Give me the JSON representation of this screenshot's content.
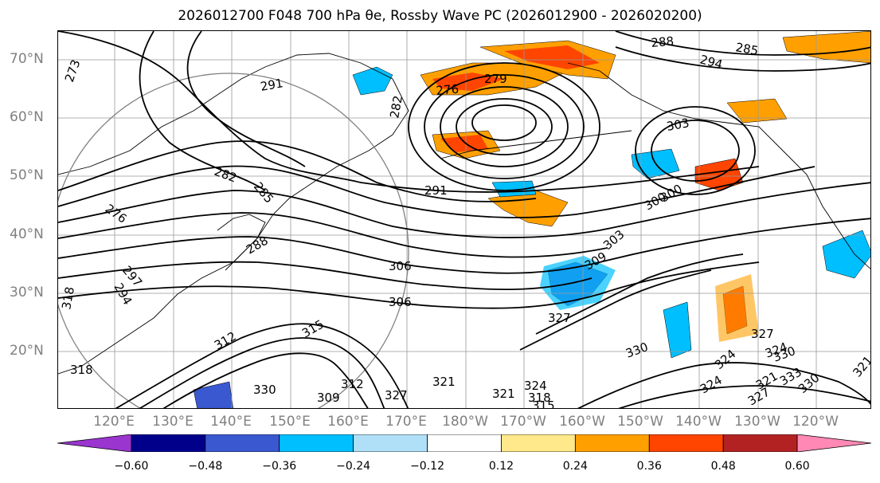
{
  "title": "2026012700 F048 700 hPa θe, Rossby Wave PC (2026012900 - 2026020200)",
  "lat_labels": [
    "70°N",
    "60°N",
    "50°N",
    "40°N",
    "30°N",
    "20°N"
  ],
  "lon_labels": [
    "120°E",
    "130°E",
    "140°E",
    "150°E",
    "160°E",
    "170°E",
    "180°W",
    "170°W",
    "160°W",
    "150°W",
    "140°W",
    "130°W",
    "120°W"
  ],
  "colorbar": {
    "colors": [
      "#9a35d0",
      "#00008b",
      "#3a59d0",
      "#00bfff",
      "#b0e0f8",
      "#ffffff",
      "#ffe98a",
      "#ffa000",
      "#ff4500",
      "#b22222",
      "#ff88b4"
    ],
    "ticks": [
      "−0.60",
      "−0.48",
      "−0.36",
      "−0.24",
      "−0.12",
      "0.12",
      "0.24",
      "0.36",
      "0.48",
      "0.60"
    ]
  },
  "contour_labels": [
    "273",
    "291",
    "288",
    "285",
    "294",
    "276",
    "279",
    "282",
    "303",
    "300",
    "282",
    "285",
    "276",
    "291",
    "300",
    "303",
    "306",
    "309",
    "306",
    "288",
    "297",
    "294",
    "318",
    "315",
    "312",
    "330",
    "327",
    "324",
    "321",
    "318",
    "315",
    "312",
    "309",
    "330",
    "327",
    "321",
    "324",
    "330",
    "324",
    "327",
    "321",
    "333",
    "330",
    "327",
    "324",
    "321",
    "318"
  ]
}
